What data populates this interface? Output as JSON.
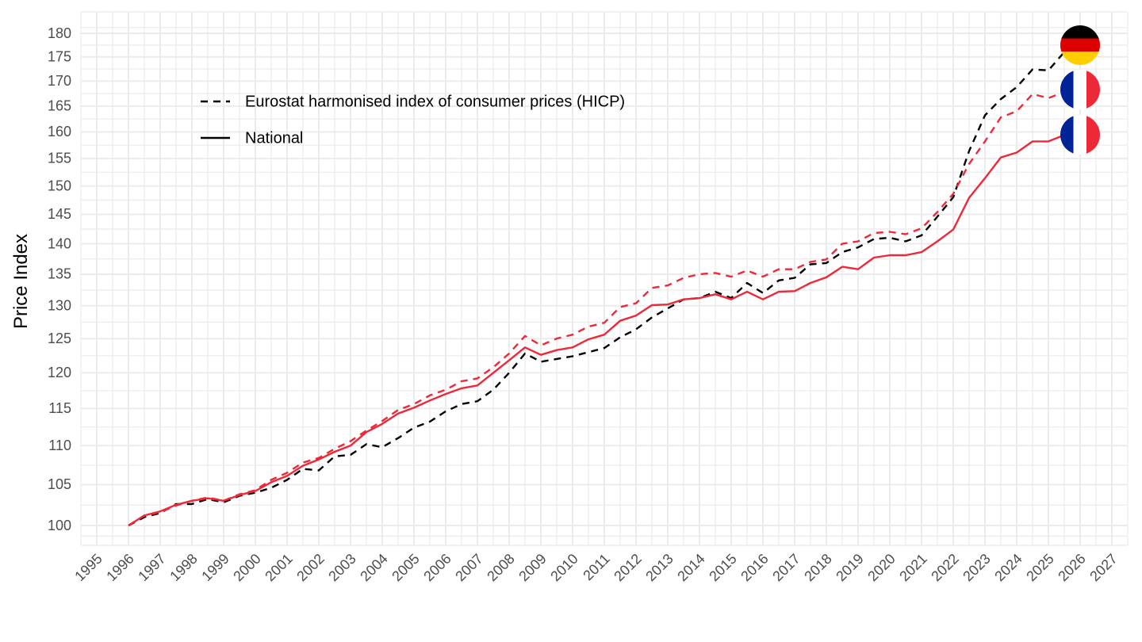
{
  "chart_data": {
    "type": "line",
    "title": "",
    "xlabel": "",
    "ylabel": "Price Index",
    "y_scale": "log",
    "ylim": [
      97,
      185
    ],
    "xlim": [
      1994.5,
      2027.5
    ],
    "grid": true,
    "y_ticks": [
      100,
      105,
      110,
      115,
      120,
      125,
      130,
      135,
      140,
      145,
      150,
      155,
      160,
      165,
      170,
      175,
      180
    ],
    "x_ticks": [
      1995,
      1996,
      1997,
      1998,
      1999,
      2000,
      2001,
      2002,
      2003,
      2004,
      2005,
      2006,
      2007,
      2008,
      2009,
      2010,
      2011,
      2012,
      2013,
      2014,
      2015,
      2016,
      2017,
      2018,
      2019,
      2020,
      2021,
      2022,
      2023,
      2024,
      2025,
      2026,
      2027
    ],
    "legend": {
      "placement": "top-left",
      "entries": [
        {
          "label": "Eurostat harmonised index of consumer prices (HICP)",
          "linetype": "dashed"
        },
        {
          "label": "National",
          "linetype": "solid"
        }
      ]
    },
    "x": [
      1996.0,
      1996.5,
      1997.0,
      1997.5,
      1998.0,
      1998.5,
      1999.0,
      1999.5,
      2000.0,
      2000.5,
      2001.0,
      2001.5,
      2002.0,
      2002.5,
      2003.0,
      2003.5,
      2004.0,
      2004.5,
      2005.0,
      2005.5,
      2006.0,
      2006.5,
      2007.0,
      2007.5,
      2008.0,
      2008.5,
      2009.0,
      2009.5,
      2010.0,
      2010.5,
      2011.0,
      2011.5,
      2012.0,
      2012.5,
      2013.0,
      2013.5,
      2014.0,
      2014.5,
      2015.0,
      2015.5,
      2016.0,
      2016.5,
      2017.0,
      2017.5,
      2018.0,
      2018.5,
      2019.0,
      2019.5,
      2020.0,
      2020.5,
      2021.0,
      2021.5,
      2022.0,
      2022.5,
      2023.0,
      2023.5,
      2024.0,
      2024.5,
      2025.0,
      2025.5,
      2026.0
    ],
    "series": [
      {
        "name": "Germany - HICP",
        "country": "Germany",
        "linetype": "dashed",
        "color": "#000000",
        "values": [
          100.0,
          101.0,
          101.5,
          102.6,
          102.6,
          103.2,
          102.8,
          103.6,
          104.0,
          104.6,
          105.6,
          107.0,
          106.8,
          108.6,
          108.8,
          110.2,
          109.8,
          111.0,
          112.4,
          113.2,
          114.6,
          115.6,
          116.0,
          117.6,
          120.0,
          122.8,
          121.6,
          122.0,
          122.4,
          123.0,
          123.6,
          125.2,
          126.4,
          128.2,
          129.6,
          131.0,
          131.2,
          132.2,
          131.2,
          133.6,
          132.0,
          134.0,
          134.4,
          136.6,
          136.8,
          138.6,
          139.4,
          140.8,
          141.0,
          140.4,
          141.4,
          144.6,
          148.0,
          156.4,
          163.2,
          166.4,
          168.8,
          172.4,
          172.2,
          176.0,
          178.0
        ]
      },
      {
        "name": "France - HICP",
        "country": "France",
        "linetype": "dashed",
        "color": "#ed2939",
        "values": [
          100.0,
          101.2,
          101.6,
          102.4,
          103.0,
          103.4,
          103.0,
          103.8,
          104.3,
          105.6,
          106.5,
          107.8,
          108.4,
          109.6,
          110.6,
          112.0,
          113.3,
          114.8,
          115.6,
          116.8,
          117.6,
          118.8,
          119.2,
          120.8,
          122.8,
          125.4,
          124.0,
          125.0,
          125.6,
          126.8,
          127.4,
          129.8,
          130.4,
          132.8,
          133.2,
          134.4,
          135.0,
          135.2,
          134.6,
          135.6,
          134.6,
          135.8,
          135.8,
          137.0,
          137.4,
          140.0,
          140.4,
          141.8,
          142.0,
          141.6,
          142.6,
          145.4,
          148.6,
          154.0,
          158.2,
          162.8,
          164.0,
          167.4,
          166.6,
          167.8,
          168.4
        ]
      },
      {
        "name": "France - National",
        "country": "France",
        "linetype": "solid",
        "color": "#ed2939",
        "values": [
          100.0,
          101.2,
          101.7,
          102.5,
          103.0,
          103.3,
          103.0,
          103.7,
          104.2,
          105.3,
          106.1,
          107.4,
          108.2,
          109.2,
          110.0,
          111.8,
          112.9,
          114.3,
          115.1,
          116.1,
          117.0,
          117.8,
          118.2,
          120.0,
          121.8,
          123.7,
          122.6,
          123.3,
          123.7,
          124.9,
          125.6,
          127.7,
          128.5,
          130.1,
          130.2,
          131.0,
          131.2,
          131.8,
          131.0,
          132.2,
          131.0,
          132.2,
          132.3,
          133.6,
          134.5,
          136.2,
          135.8,
          137.7,
          138.1,
          138.1,
          138.6,
          140.4,
          142.4,
          147.9,
          151.4,
          155.2,
          156.1,
          158.2,
          158.2,
          159.4,
          160.2
        ]
      }
    ],
    "end_markers": [
      {
        "series": "Germany - HICP",
        "icon": "germany-flag-icon",
        "colors": [
          "#000000",
          "#dd0000",
          "#ffce00"
        ]
      },
      {
        "series": "France - HICP",
        "icon": "france-flag-icon",
        "colors": [
          "#002395",
          "#ffffff",
          "#ed2939"
        ]
      },
      {
        "series": "France - National",
        "icon": "france-flag-icon",
        "colors": [
          "#002395",
          "#ffffff",
          "#ed2939"
        ]
      }
    ]
  }
}
